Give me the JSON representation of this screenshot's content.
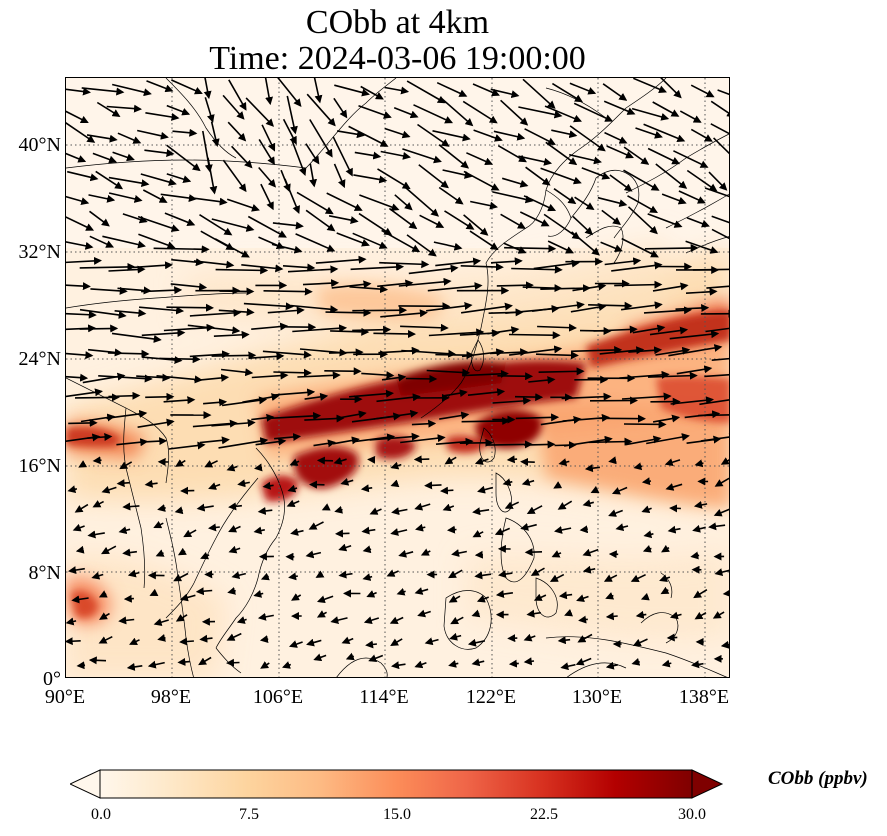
{
  "title": {
    "line1": "CObb at 4km",
    "line2": "Time: 2024-03-06 19:00:00"
  },
  "map": {
    "lon_range": [
      90,
      140
    ],
    "lat_range": [
      0,
      45
    ],
    "lat_ticks": [
      "40°N",
      "32°N",
      "24°N",
      "16°N",
      "8°N",
      "0°"
    ],
    "lon_ticks": [
      "90°E",
      "98°E",
      "106°E",
      "114°E",
      "122°E",
      "130°E",
      "138°E"
    ],
    "gridlines": true,
    "variable": "CObb",
    "level": "4km"
  },
  "colorbar": {
    "label": "CObb (ppbv)",
    "min": 0.0,
    "max": 30.0,
    "ticks": [
      "0.0",
      "7.5",
      "15.0",
      "22.5",
      "30.0"
    ],
    "colormap": "OrRd",
    "colors": [
      "#fff7ec",
      "#fee8c8",
      "#fdd49e",
      "#fdbb84",
      "#fc8d59",
      "#ef6548",
      "#d7301f",
      "#b30000",
      "#7f0000"
    ],
    "extend": "both"
  },
  "plumes": [
    {
      "lon": 116,
      "lat": 21.5,
      "value": 30
    },
    {
      "lon": 110,
      "lat": 20.0,
      "value": 30
    },
    {
      "lon": 108,
      "lat": 17.0,
      "value": 28
    },
    {
      "lon": 106,
      "lat": 14.5,
      "value": 25
    },
    {
      "lon": 124.5,
      "lat": 18.5,
      "value": 29
    },
    {
      "lon": 118,
      "lat": 17.5,
      "value": 27
    },
    {
      "lon": 134,
      "lat": 25.0,
      "value": 22
    },
    {
      "lon": 137,
      "lat": 21.0,
      "value": 18
    },
    {
      "lon": 92,
      "lat": 18.5,
      "value": 20
    },
    {
      "lon": 92,
      "lat": 5.5,
      "value": 16
    },
    {
      "lon": 113,
      "lat": 27.5,
      "value": 10
    }
  ]
}
